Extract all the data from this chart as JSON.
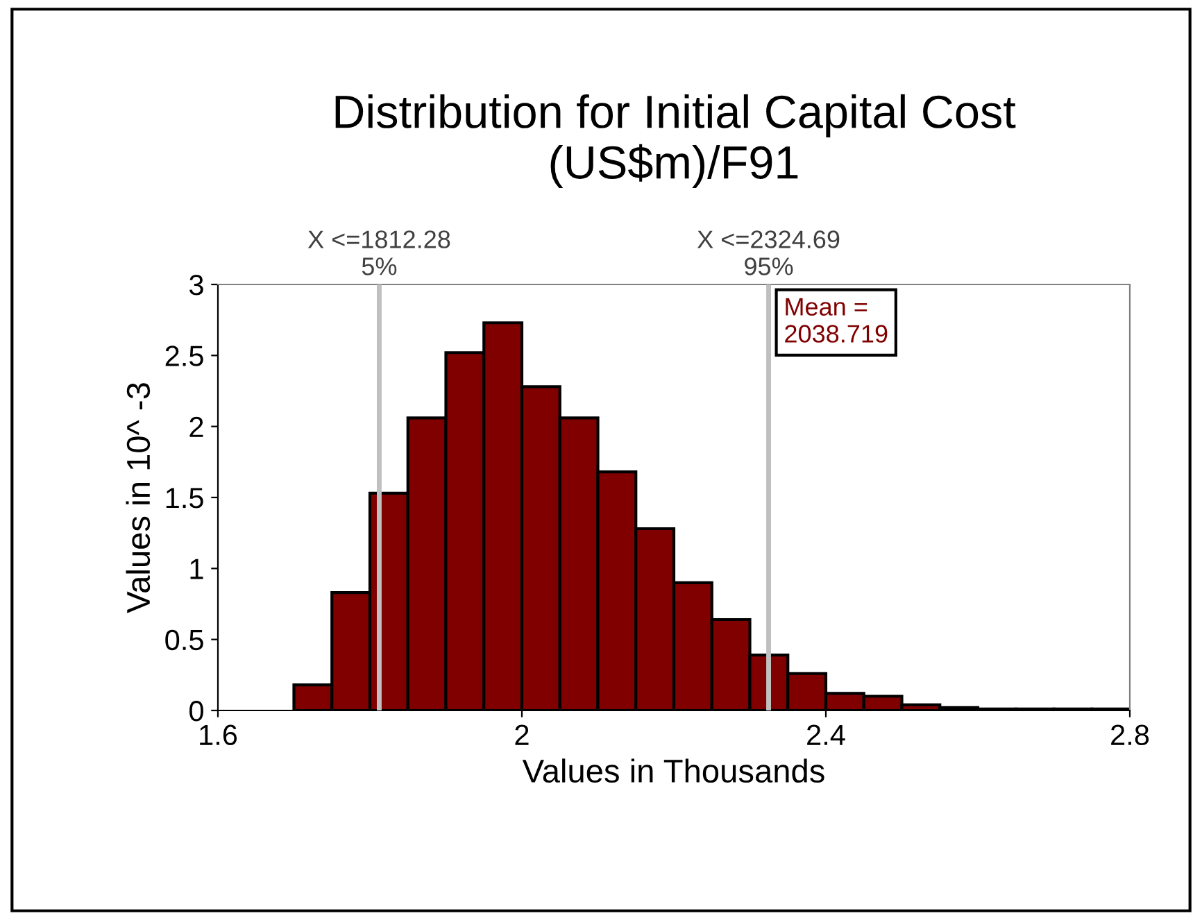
{
  "chart_data": {
    "type": "histogram",
    "title": "Distribution for Initial Capital Cost\n(US$m)/F91",
    "xlabel": "Values in Thousands",
    "ylabel": "Values in 10^ -3",
    "bins": [
      1.7,
      1.75,
      1.8,
      1.85,
      1.9,
      1.95,
      2.0,
      2.05,
      2.1,
      2.15,
      2.2,
      2.25,
      2.3,
      2.35,
      2.4,
      2.45,
      2.5,
      2.55,
      2.6,
      2.65,
      2.7,
      2.75,
      2.8
    ],
    "values": [
      0.18,
      0.83,
      1.53,
      2.06,
      2.52,
      2.73,
      2.28,
      2.06,
      1.68,
      1.28,
      0.9,
      0.64,
      0.39,
      0.26,
      0.12,
      0.1,
      0.04,
      0.02,
      0.01,
      0.01,
      0.01,
      0.01
    ],
    "color": "#800000",
    "xlim": [
      1.6,
      2.8
    ],
    "xticks": [
      1.6,
      2,
      2.4,
      2.8
    ],
    "ylim": [
      0,
      3
    ],
    "yticks": [
      0,
      0.5,
      1,
      1.5,
      2,
      2.5,
      3
    ],
    "ref_lines": [
      {
        "axis": "x",
        "value": 1.81228,
        "label": "X <=1812.28\n5%",
        "color": "#c0c0c0"
      },
      {
        "axis": "x",
        "value": 2.32469,
        "label": "X <=2324.69\n95%",
        "color": "#c0c0c0"
      }
    ],
    "annotations": [
      "Mean =\n2038.719"
    ],
    "grid": false,
    "legend": false
  }
}
